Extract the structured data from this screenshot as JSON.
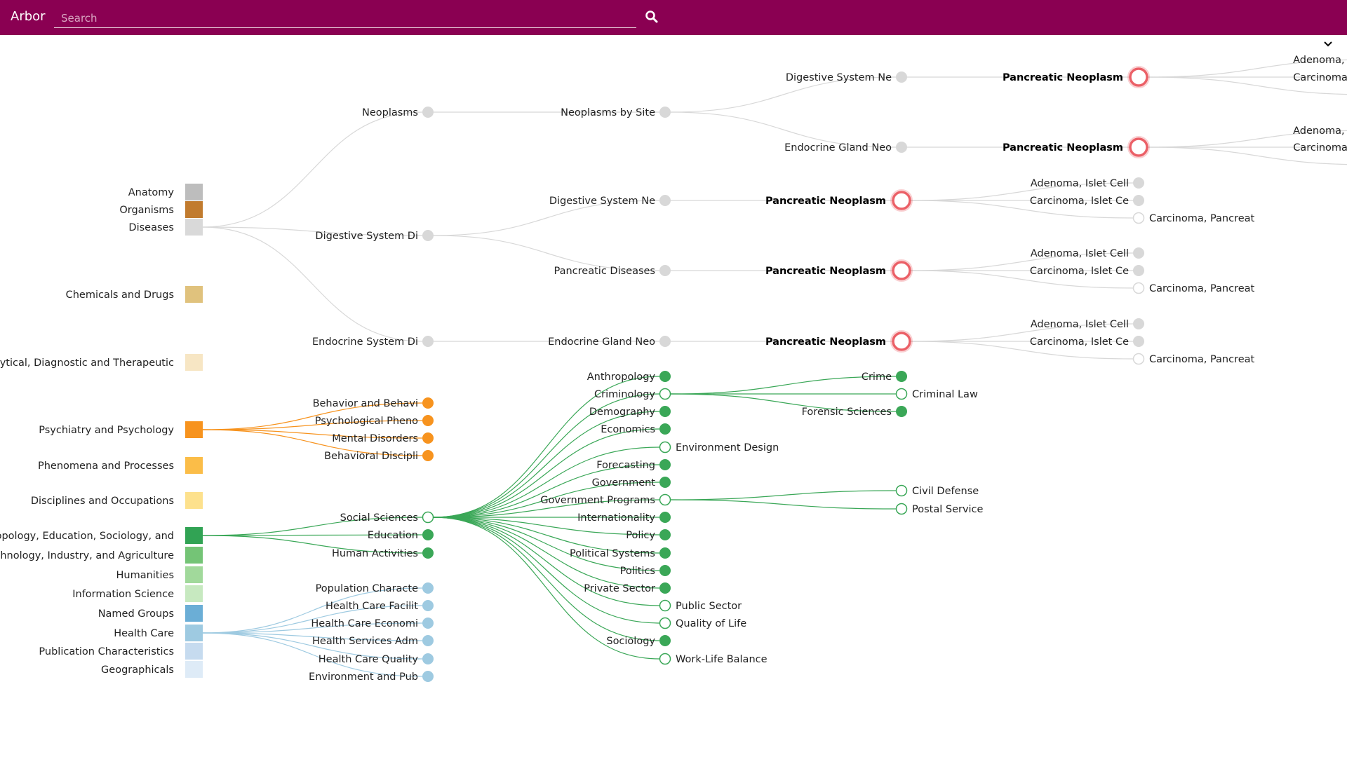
{
  "header": {
    "app_title": "Arbor",
    "search_placeholder": "Search"
  },
  "icons": {
    "search": "search-icon",
    "expand": "chevron-down-icon"
  },
  "colors": {
    "header_bg": "#8a0052",
    "link_gray": "#d8d8d8",
    "psych": "#f7931e",
    "social": "#3aa757",
    "health": "#9ecae1",
    "highlight": "#e8444c"
  },
  "categories": [
    {
      "label": "Anatomy",
      "color": "#bdbdbd"
    },
    {
      "label": "Organisms",
      "color": "#c17b2e"
    },
    {
      "label": "Diseases",
      "color": "#d9d9d9"
    },
    {
      "label": "Chemicals and Drugs",
      "color": "#e0c27d"
    },
    {
      "label": "Analytical, Diagnostic and Therapeutic",
      "color": "#f7e6c4"
    },
    {
      "label": "Psychiatry and Psychology",
      "color": "#f7931e"
    },
    {
      "label": "Phenomena and Processes",
      "color": "#fbbd48"
    },
    {
      "label": "Disciplines and Occupations",
      "color": "#fde18d"
    },
    {
      "label": "Anthropology, Education, Sociology, and",
      "color": "#31a354"
    },
    {
      "label": "Technology, Industry, and Agriculture",
      "color": "#74c476"
    },
    {
      "label": "Humanities",
      "color": "#a1d99b"
    },
    {
      "label": "Information Science",
      "color": "#c7e9c0"
    },
    {
      "label": "Named Groups",
      "color": "#6baed6"
    },
    {
      "label": "Health Care",
      "color": "#9ecae1"
    },
    {
      "label": "Publication Characteristics",
      "color": "#c6dbef"
    },
    {
      "label": "Geographicals",
      "color": "#deebf7"
    }
  ],
  "nodes": [
    {
      "id": "d1",
      "label": "Neoplasms"
    },
    {
      "id": "d2",
      "label": "Digestive System Di"
    },
    {
      "id": "d3",
      "label": "Endocrine System Di"
    },
    {
      "id": "d1a",
      "label": "Neoplasms by Site"
    },
    {
      "id": "d2a",
      "label": "Digestive System Ne"
    },
    {
      "id": "d2b",
      "label": "Pancreatic Diseases"
    },
    {
      "id": "d3a",
      "label": "Endocrine Gland Neo"
    },
    {
      "id": "d1a1",
      "label": "Digestive System Ne"
    },
    {
      "id": "d1a2",
      "label": "Endocrine Gland Neo"
    },
    {
      "id": "pnA",
      "label": "Pancreatic Neoplasm",
      "highlight": true
    },
    {
      "id": "pnB",
      "label": "Pancreatic Neoplasm",
      "highlight": true
    },
    {
      "id": "pnC",
      "label": "Pancreatic Neoplasm",
      "highlight": true
    },
    {
      "id": "pnD",
      "label": "Pancreatic Neoplasm",
      "highlight": true
    },
    {
      "id": "pnE",
      "label": "Pancreatic Neoplasm",
      "highlight": true
    },
    {
      "id": "a1",
      "label": "Adenoma, Isle"
    },
    {
      "id": "a2",
      "label": "Carcinoma, Isl"
    },
    {
      "id": "a3",
      "label": ""
    },
    {
      "id": "b1",
      "label": "Adenoma, Isle"
    },
    {
      "id": "b2",
      "label": "Carcinoma, Isl"
    },
    {
      "id": "b3",
      "label": ""
    },
    {
      "id": "c1",
      "label": "Adenoma, Islet Cell"
    },
    {
      "id": "c2",
      "label": "Carcinoma, Islet Ce"
    },
    {
      "id": "c3",
      "label": "Carcinoma, Pancreat"
    },
    {
      "id": "e1",
      "label": "Adenoma, Islet Cell"
    },
    {
      "id": "e2",
      "label": "Carcinoma, Islet Ce"
    },
    {
      "id": "e3",
      "label": "Carcinoma, Pancreat"
    },
    {
      "id": "f1",
      "label": "Adenoma, Islet Cell"
    },
    {
      "id": "f2",
      "label": "Carcinoma, Islet Ce"
    },
    {
      "id": "f3",
      "label": "Carcinoma, Pancreat"
    },
    {
      "id": "p1",
      "label": "Behavior and Behavi"
    },
    {
      "id": "p2",
      "label": "Psychological Pheno"
    },
    {
      "id": "p3",
      "label": "Mental Disorders"
    },
    {
      "id": "p4",
      "label": "Behavioral Discipli"
    },
    {
      "id": "s1",
      "label": "Social Sciences"
    },
    {
      "id": "s2",
      "label": "Education"
    },
    {
      "id": "s3",
      "label": "Human Activities"
    },
    {
      "id": "ss1",
      "label": "Anthropology"
    },
    {
      "id": "ss2",
      "label": "Criminology"
    },
    {
      "id": "ss3",
      "label": "Demography"
    },
    {
      "id": "ss4",
      "label": "Economics"
    },
    {
      "id": "ss5",
      "label": "Environment Design"
    },
    {
      "id": "ss6",
      "label": "Forecasting"
    },
    {
      "id": "ss7",
      "label": "Government"
    },
    {
      "id": "ss8",
      "label": "Government Programs"
    },
    {
      "id": "ss9",
      "label": "Internationality"
    },
    {
      "id": "ss10",
      "label": "Policy"
    },
    {
      "id": "ss11",
      "label": "Political Systems"
    },
    {
      "id": "ss12",
      "label": "Politics"
    },
    {
      "id": "ss13",
      "label": "Private Sector"
    },
    {
      "id": "ss14",
      "label": "Public Sector"
    },
    {
      "id": "ss15",
      "label": "Quality of Life"
    },
    {
      "id": "ss16",
      "label": "Sociology"
    },
    {
      "id": "ss17",
      "label": "Work-Life Balance"
    },
    {
      "id": "cr1",
      "label": "Crime"
    },
    {
      "id": "cr2",
      "label": "Criminal Law"
    },
    {
      "id": "cr3",
      "label": "Forensic Sciences"
    },
    {
      "id": "gp1",
      "label": "Civil Defense"
    },
    {
      "id": "gp2",
      "label": "Postal Service"
    },
    {
      "id": "h1",
      "label": "Population Characte"
    },
    {
      "id": "h2",
      "label": "Health Care Facilit"
    },
    {
      "id": "h3",
      "label": "Health Care Economi"
    },
    {
      "id": "h4",
      "label": "Health Services Adm"
    },
    {
      "id": "h5",
      "label": "Health Care Quality"
    },
    {
      "id": "h6",
      "label": "Environment and Pub"
    }
  ]
}
